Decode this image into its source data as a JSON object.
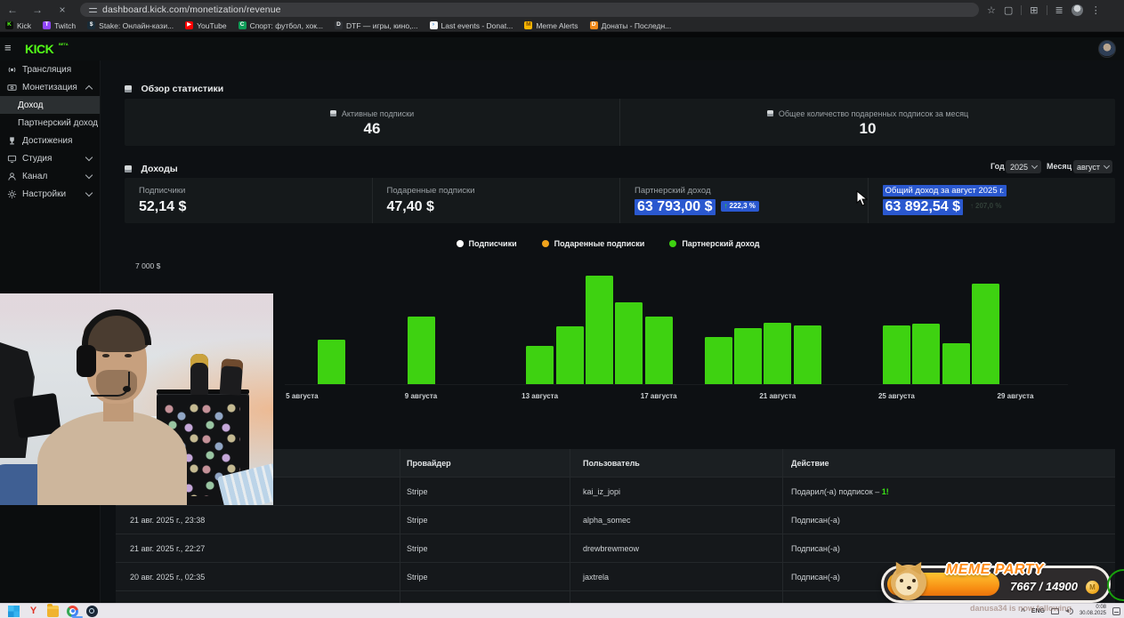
{
  "browser": {
    "url": "dashboard.kick.com/monetization/revenue",
    "bookmarks": [
      {
        "label": "Kick",
        "icon_text": "K",
        "icon_bg": "#0b0e0b",
        "icon_fg": "#53fc18"
      },
      {
        "label": "Twitch",
        "icon_text": "T",
        "icon_bg": "#9146ff",
        "icon_fg": "#ffffff"
      },
      {
        "label": "Stake: Онлайн-кази...",
        "icon_text": "$",
        "icon_bg": "#1a2c38",
        "icon_fg": "#ffffff"
      },
      {
        "label": "YouTube",
        "icon_text": "▶",
        "icon_bg": "#ff0000",
        "icon_fg": "#ffffff"
      },
      {
        "label": "Спорт: футбол, хок...",
        "icon_text": "C",
        "icon_bg": "#0f9d58",
        "icon_fg": "#ffffff"
      },
      {
        "label": "DTF — игры, кино,...",
        "icon_text": "D",
        "icon_bg": "#2f3236",
        "icon_fg": "#ffffff"
      },
      {
        "label": "Last events - Donat...",
        "icon_text": "›",
        "icon_bg": "#f5f6f7",
        "icon_fg": "#3b88d8"
      },
      {
        "label": "Meme Alerts",
        "icon_text": "M",
        "icon_bg": "#f7b500",
        "icon_fg": "#7a4a00"
      },
      {
        "label": "Донаты - Последн...",
        "icon_text": "D",
        "icon_bg": "#f0891a",
        "icon_fg": "#ffffff"
      }
    ]
  },
  "icons": {
    "back": "←",
    "forward": "→",
    "stop": "×",
    "star": "☆",
    "kebab": "⋮",
    "hamburger": "≡",
    "arrow_up": "↑",
    "tray_expand": "^",
    "coin": "M"
  },
  "app": {
    "logo": "KICK",
    "beta": "BETA",
    "sidebar": [
      {
        "id": "broadcast",
        "label": "Трансляция",
        "icon": "broadcast"
      },
      {
        "id": "monetization",
        "label": "Монетизация",
        "icon": "monetization",
        "chevron": "up"
      },
      {
        "id": "income",
        "label": "Доход",
        "sub": true,
        "active": true
      },
      {
        "id": "partner-income",
        "label": "Партнерский доход",
        "sub": true
      },
      {
        "id": "achievements",
        "label": "Достижения",
        "icon": "achievements"
      },
      {
        "id": "studio",
        "label": "Студия",
        "icon": "studio",
        "chevron": "down"
      },
      {
        "id": "channel",
        "label": "Канал",
        "icon": "channel",
        "chevron": "down"
      },
      {
        "id": "settings",
        "label": "Настройки",
        "icon": "settings",
        "chevron": "down"
      }
    ],
    "overview": {
      "title": "Обзор статистики",
      "cards": [
        {
          "label": "Активные подписки",
          "value": "46"
        },
        {
          "label": "Общее количество подаренных подписок за месяц",
          "value": "10"
        }
      ]
    },
    "income": {
      "title": "Доходы",
      "year_label": "Год",
      "year": "2025",
      "month_label": "Месяц",
      "month": "август",
      "cards": [
        {
          "label": "Подписчики",
          "value": "52,14 $"
        },
        {
          "label": "Подаренные подписки",
          "value": "47,40 $"
        },
        {
          "label": "Партнерский доход",
          "value": "63 793,00 $",
          "delta": "222,3 %"
        },
        {
          "label": "Общий доход за август 2025 г.",
          "value": "63 892,54 $",
          "delta": "207,0 %"
        }
      ]
    },
    "table": {
      "headers": [
        "",
        "Провайдер",
        "Пользователь",
        "Действие"
      ],
      "rows": [
        {
          "date": "",
          "provider": "Stripe",
          "user": "kai_iz_jopi",
          "action": "Подарил(-а) подписок – ",
          "action_highlight": "1!"
        },
        {
          "date": "21 авг. 2025 г., 23:38",
          "provider": "Stripe",
          "user": "alpha_somec",
          "action": "Подписан(-а)"
        },
        {
          "date": "21 авг. 2025 г., 22:27",
          "provider": "Stripe",
          "user": "drewbrewmeow",
          "action": "Подписан(-а)"
        },
        {
          "date": "20 авг. 2025 г., 02:35",
          "provider": "Stripe",
          "user": "jaxtrela",
          "action": "Подписан(-а)"
        }
      ]
    }
  },
  "chart_data": {
    "type": "bar",
    "title": "Доходы (Партнерский доход по дням, август 2025)",
    "legend": [
      "Подписчики",
      "Подаренные подписки",
      "Партнерский доход"
    ],
    "legend_colors": [
      "#ffffff",
      "#f0a31c",
      "#3ed211"
    ],
    "legend_position": "top-center",
    "bar_color": "#3ed211",
    "xlabel": "",
    "ylabel": "$",
    "y_visible_tick": "7 000 $",
    "ylim": [
      0,
      7600
    ],
    "grid": false,
    "x_ticks": [
      "5 августа",
      "9 августа",
      "13 августа",
      "17 августа",
      "21 августа",
      "25 августа",
      "29 августа"
    ],
    "x_tick_days": [
      5,
      9,
      13,
      17,
      21,
      25,
      29
    ],
    "series": [
      {
        "name": "Партнерский доход",
        "x_days": [
          6,
          9,
          13,
          14,
          15,
          16,
          17,
          19,
          20,
          21,
          22,
          25,
          26,
          27,
          28
        ],
        "values": [
          2600,
          4000,
          2250,
          3400,
          6400,
          4800,
          4000,
          2800,
          3300,
          3600,
          3450,
          3450,
          3550,
          2400,
          5900
        ]
      }
    ]
  },
  "meme_party": {
    "title": "MEME PARTY",
    "progress_text": "7667 / 14900",
    "current": 7667,
    "max": 14900
  },
  "overlay": {
    "follow_text": "danusa34 is now following"
  },
  "taskbar": {
    "lang": "ENG",
    "time": "0:08",
    "date": "30.08.2025"
  }
}
